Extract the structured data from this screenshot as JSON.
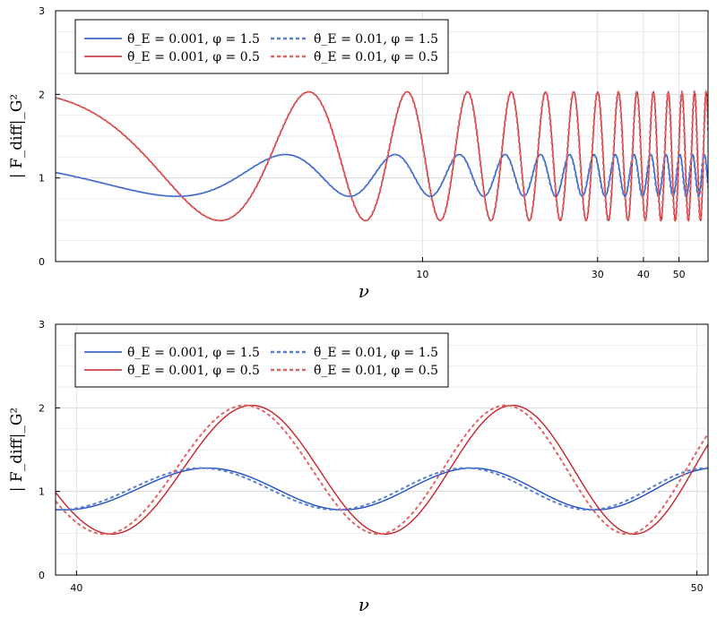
{
  "chart_data": [
    {
      "type": "line",
      "x_scale": "log",
      "xlabel": "ν",
      "ylabel": "| F_diff|_G²",
      "ylim": [
        0,
        3
      ],
      "xlim": [
        1,
        60
      ],
      "x_ticks": [
        "10",
        "30",
        "40",
        "50"
      ],
      "y_ticks": [
        "0",
        "1",
        "2",
        "3"
      ],
      "grid": true,
      "legend_position": "top-left",
      "series": [
        {
          "name": "θ̃_E = 0.001, φ = 1.5",
          "color": "#1f4fbf",
          "dash": "solid",
          "phase": 1.5,
          "theta": 0.001
        },
        {
          "name": "θ̃_E = 0.001, φ = 0.5",
          "color": "#c4242b",
          "dash": "solid",
          "phase": 0.5,
          "theta": 0.001
        },
        {
          "name": "θ̃_E = 0.01, φ = 1.5",
          "color": "#5b7fd6",
          "dash": "dashed",
          "phase": 1.5,
          "theta": 0.01
        },
        {
          "name": "θ̃_E = 0.01, φ = 0.5",
          "color": "#e06666",
          "dash": "dashed",
          "phase": 0.5,
          "theta": 0.01
        }
      ]
    },
    {
      "type": "line",
      "x_scale": "log",
      "xlabel": "ν",
      "ylabel": "| F_diff|_G²",
      "ylim": [
        0,
        3
      ],
      "xlim": [
        39.7,
        50.2
      ],
      "x_ticks": [
        "40",
        "50"
      ],
      "y_ticks": [
        "0",
        "1",
        "2",
        "3"
      ],
      "grid": true,
      "legend_position": "top-left",
      "series": [
        {
          "name": "θ̃_E = 0.001, φ = 1.5",
          "color": "#1f4fbf",
          "dash": "solid",
          "phase": 1.5,
          "theta": 0.001
        },
        {
          "name": "θ̃_E = 0.001, φ = 0.5",
          "color": "#c4242b",
          "dash": "solid",
          "phase": 0.5,
          "theta": 0.001
        },
        {
          "name": "θ̃_E = 0.01, φ = 1.5",
          "color": "#5b7fd6",
          "dash": "dashed",
          "phase": 1.5,
          "theta": 0.01
        },
        {
          "name": "θ̃_E = 0.01, φ = 0.5",
          "color": "#e06666",
          "dash": "dashed",
          "phase": 0.5,
          "theta": 0.01
        }
      ]
    }
  ]
}
